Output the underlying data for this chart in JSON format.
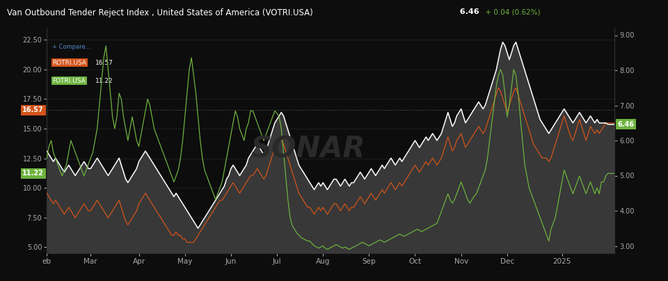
{
  "title": "Van Outbound Tender Reject Index , United States of America (VOTRI.USA)",
  "title_suffix": "6.46",
  "title_change": "+ 0.04 (0.62%)",
  "bg_color": "#0d0d0d",
  "plot_bg_color": "#0d0d0d",
  "grid_color": "#2a2a2a",
  "watermark": "SONAR",
  "left_ylim": [
    4.5,
    23.5
  ],
  "right_ylim": [
    2.8,
    9.2
  ],
  "left_yticks": [
    5.0,
    7.5,
    10.0,
    12.5,
    15.0,
    17.5,
    20.0,
    22.5
  ],
  "right_yticks": [
    3.0,
    4.0,
    5.0,
    6.0,
    7.0,
    8.0,
    9.0
  ],
  "xtick_labels": [
    "eb",
    "Mar",
    "Apr",
    "May",
    "Jun",
    "Jul",
    "Aug",
    "Sep",
    "Oct",
    "Nov",
    "Dec",
    "2025"
  ],
  "hline_y_right": 6.46,
  "label_left_rotri": "16.57",
  "label_left_fotri": "11.22",
  "legend_rotri": "ROTRI.USA",
  "legend_rotri_val": "16.57",
  "legend_fotri": "FOTRI.USA",
  "legend_fotri_val": "11.22",
  "color_white": "#ffffff",
  "color_orange": "#d4541a",
  "color_green": "#6db33f",
  "right_end_label_val": "6.46",
  "n": 260
}
